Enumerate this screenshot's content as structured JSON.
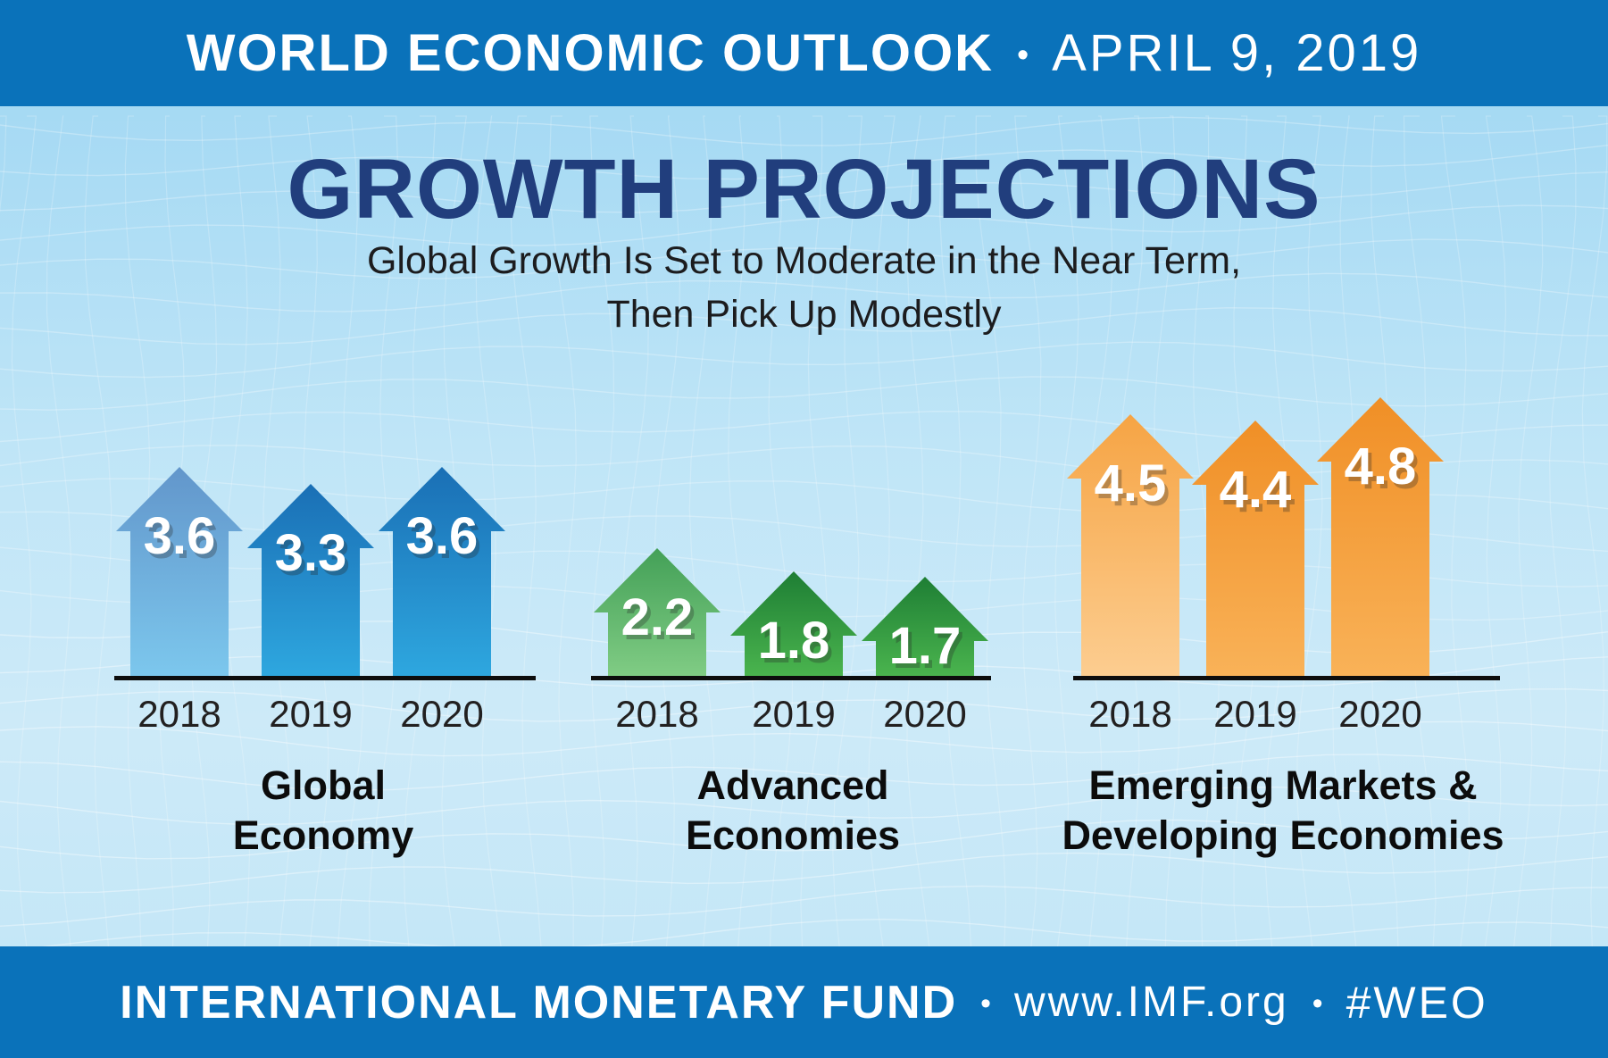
{
  "header": {
    "title": "WORLD ECONOMIC OUTLOOK",
    "separator": "•",
    "date": "APRIL 9, 2019"
  },
  "hero": {
    "title": "GROWTH PROJECTIONS",
    "subtitle_line1": "Global Growth Is Set to Moderate in the Near Term,",
    "subtitle_line2": "Then Pick Up Modestly"
  },
  "footer": {
    "org": "INTERNATIONAL MONETARY FUND",
    "separator": "•",
    "url": "www.IMF.org",
    "hashtag": "#WEO"
  },
  "colors": {
    "banner": "#0A72BA",
    "title": "#213E7D",
    "subtitle": "#1C1C1E",
    "baseline": "#0D0D0D",
    "background_top": "#A3D8F2",
    "background_bottom": "#CDEAF8",
    "mesh_line": "#FFFFFF"
  },
  "chart_data": {
    "type": "bar",
    "title": "GROWTH PROJECTIONS",
    "subtitle": "Global Growth Is Set to Moderate in the Near Term, Then Pick Up Modestly",
    "unit": "percent growth (%)",
    "categories": [
      "2018",
      "2019",
      "2020"
    ],
    "series": [
      {
        "name": "Global Economy",
        "name_lines": [
          "Global",
          "Economy"
        ],
        "values": [
          3.6,
          3.3,
          3.6
        ],
        "arrow_gradients": [
          [
            "#6296CB",
            "#7CC7ED"
          ],
          [
            "#1A6FB5",
            "#2EA7DF"
          ],
          [
            "#1A6FB5",
            "#2EA7DF"
          ]
        ]
      },
      {
        "name": "Advanced Economies",
        "name_lines": [
          "Advanced",
          "Economies"
        ],
        "values": [
          2.2,
          1.8,
          1.7
        ],
        "arrow_gradients": [
          [
            "#43A057",
            "#80CC84"
          ],
          [
            "#1E7E34",
            "#4AB44E"
          ],
          [
            "#1E7E34",
            "#4AB44E"
          ]
        ]
      },
      {
        "name": "Emerging Markets & Developing Economies",
        "name_lines": [
          "Emerging Markets &",
          "Developing Economies"
        ],
        "values": [
          4.5,
          4.4,
          4.8
        ],
        "arrow_gradients": [
          [
            "#F6A444",
            "#FCCD90"
          ],
          [
            "#F08F26",
            "#F9B258"
          ],
          [
            "#F08F26",
            "#F9B258"
          ]
        ]
      }
    ],
    "layout": {
      "bar_style": "upward-arrow",
      "value_labels": "on-bar-white",
      "baseline": "black-line-per-group",
      "grid": "off",
      "legend": "none",
      "ylim": [
        0,
        5
      ]
    }
  }
}
